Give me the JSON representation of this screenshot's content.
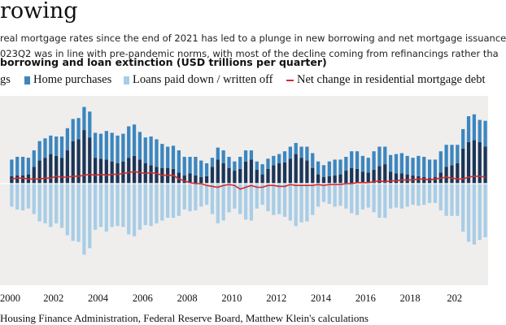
{
  "header": {
    "title": "rowing",
    "subtitle_line1": "real mortgage rates since the end of 2021 has led to a plunge in new borrowing and net mortgage issuance",
    "subtitle_line2": "023Q2 was in line with pre-pandemic norms, with most of the decline coming from refinancings rather tha"
  },
  "source": "Housing Finance Administration, Federal Reserve Board, Matthew Klein's calculations",
  "colors": {
    "refinancings": "#1c3557",
    "home_purchases": "#3c86bf",
    "loans_paid_down": "#a8cde6",
    "net_change": "#d62b2b",
    "plot_background": "#efeeed",
    "zero_line": "#ffffff"
  },
  "chart_data": {
    "type": "bar",
    "title": "borrowing and loan extinction (USD trillions per quarter)",
    "legend": {
      "refinancings": "gs",
      "home_purchases": "Home purchases",
      "loans_paid_down": "Loans paid down / written off",
      "net_change": "Net change in residential mortgage debt"
    },
    "legend_position": "top",
    "x_tick_labels": [
      "2000",
      "2002",
      "2004",
      "2006",
      "2008",
      "2010",
      "2012",
      "2014",
      "2016",
      "2018",
      "202"
    ],
    "x_ticks_year": [
      2000,
      2002,
      2004,
      2006,
      2008,
      2010,
      2012,
      2014,
      2016,
      2018,
      2020
    ],
    "xlim_year": [
      1999.6,
      2021.5
    ],
    "ylim": [
      -1.1,
      0.95
    ],
    "grid": false,
    "quarters": [
      "2000Q1",
      "2000Q2",
      "2000Q3",
      "2000Q4",
      "2001Q1",
      "2001Q2",
      "2001Q3",
      "2001Q4",
      "2002Q1",
      "2002Q2",
      "2002Q3",
      "2002Q4",
      "2003Q1",
      "2003Q2",
      "2003Q3",
      "2003Q4",
      "2004Q1",
      "2004Q2",
      "2004Q3",
      "2004Q4",
      "2005Q1",
      "2005Q2",
      "2005Q3",
      "2005Q4",
      "2006Q1",
      "2006Q2",
      "2006Q3",
      "2006Q4",
      "2007Q1",
      "2007Q2",
      "2007Q3",
      "2007Q4",
      "2008Q1",
      "2008Q2",
      "2008Q3",
      "2008Q4",
      "2009Q1",
      "2009Q2",
      "2009Q3",
      "2009Q4",
      "2010Q1",
      "2010Q2",
      "2010Q3",
      "2010Q4",
      "2011Q1",
      "2011Q2",
      "2011Q3",
      "2011Q4",
      "2012Q1",
      "2012Q2",
      "2012Q3",
      "2012Q4",
      "2013Q1",
      "2013Q2",
      "2013Q3",
      "2013Q4",
      "2014Q1",
      "2014Q2",
      "2014Q3",
      "2014Q4",
      "2015Q1",
      "2015Q2",
      "2015Q3",
      "2015Q4",
      "2016Q1",
      "2016Q2",
      "2016Q3",
      "2016Q4",
      "2017Q1",
      "2017Q2",
      "2017Q3",
      "2017Q4",
      "2018Q1",
      "2018Q2",
      "2018Q3",
      "2018Q4",
      "2019Q1",
      "2019Q2",
      "2019Q3",
      "2019Q4",
      "2020Q1",
      "2020Q2",
      "2020Q3",
      "2020Q4",
      "2021Q1",
      "2021Q2"
    ],
    "series": [
      {
        "name": "gs",
        "values": [
          0.08,
          0.09,
          0.09,
          0.1,
          0.18,
          0.25,
          0.28,
          0.32,
          0.3,
          0.28,
          0.36,
          0.46,
          0.48,
          0.58,
          0.5,
          0.28,
          0.27,
          0.26,
          0.24,
          0.22,
          0.24,
          0.28,
          0.3,
          0.26,
          0.22,
          0.2,
          0.18,
          0.17,
          0.17,
          0.16,
          0.12,
          0.09,
          0.11,
          0.09,
          0.07,
          0.08,
          0.18,
          0.26,
          0.22,
          0.17,
          0.14,
          0.16,
          0.24,
          0.26,
          0.15,
          0.1,
          0.16,
          0.2,
          0.22,
          0.23,
          0.27,
          0.32,
          0.28,
          0.25,
          0.17,
          0.1,
          0.07,
          0.08,
          0.09,
          0.1,
          0.14,
          0.17,
          0.16,
          0.13,
          0.12,
          0.15,
          0.19,
          0.21,
          0.13,
          0.11,
          0.11,
          0.1,
          0.09,
          0.08,
          0.07,
          0.06,
          0.07,
          0.12,
          0.18,
          0.2,
          0.22,
          0.38,
          0.45,
          0.47,
          0.45,
          0.4
        ]
      },
      {
        "name": "Home purchases",
        "values": [
          0.18,
          0.2,
          0.2,
          0.18,
          0.18,
          0.21,
          0.21,
          0.2,
          0.21,
          0.23,
          0.24,
          0.24,
          0.23,
          0.25,
          0.28,
          0.27,
          0.27,
          0.31,
          0.31,
          0.3,
          0.3,
          0.34,
          0.34,
          0.3,
          0.28,
          0.31,
          0.3,
          0.26,
          0.23,
          0.25,
          0.24,
          0.2,
          0.18,
          0.2,
          0.18,
          0.14,
          0.1,
          0.13,
          0.14,
          0.12,
          0.1,
          0.13,
          0.12,
          0.1,
          0.09,
          0.11,
          0.11,
          0.1,
          0.1,
          0.12,
          0.13,
          0.12,
          0.12,
          0.15,
          0.16,
          0.14,
          0.13,
          0.16,
          0.17,
          0.16,
          0.15,
          0.18,
          0.19,
          0.17,
          0.16,
          0.2,
          0.21,
          0.19,
          0.18,
          0.21,
          0.22,
          0.2,
          0.19,
          0.22,
          0.22,
          0.2,
          0.19,
          0.23,
          0.24,
          0.22,
          0.2,
          0.21,
          0.28,
          0.28,
          0.24,
          0.28
        ]
      },
      {
        "name": "Loans paid down / written off",
        "values": [
          -0.25,
          -0.28,
          -0.29,
          -0.27,
          -0.33,
          -0.41,
          -0.43,
          -0.47,
          -0.43,
          -0.48,
          -0.56,
          -0.62,
          -0.63,
          -0.77,
          -0.7,
          -0.5,
          -0.47,
          -0.52,
          -0.47,
          -0.46,
          -0.47,
          -0.55,
          -0.57,
          -0.5,
          -0.45,
          -0.46,
          -0.43,
          -0.4,
          -0.37,
          -0.37,
          -0.35,
          -0.28,
          -0.3,
          -0.29,
          -0.25,
          -0.23,
          -0.33,
          -0.43,
          -0.4,
          -0.31,
          -0.27,
          -0.33,
          -0.39,
          -0.4,
          -0.27,
          -0.23,
          -0.3,
          -0.34,
          -0.33,
          -0.36,
          -0.4,
          -0.46,
          -0.42,
          -0.41,
          -0.34,
          -0.25,
          -0.2,
          -0.22,
          -0.25,
          -0.24,
          -0.27,
          -0.32,
          -0.34,
          -0.28,
          -0.26,
          -0.31,
          -0.37,
          -0.37,
          -0.27,
          -0.26,
          -0.27,
          -0.25,
          -0.23,
          -0.24,
          -0.23,
          -0.21,
          -0.21,
          -0.29,
          -0.35,
          -0.35,
          -0.35,
          -0.52,
          -0.63,
          -0.66,
          -0.61,
          -0.58
        ]
      },
      {
        "name": "Net change in residential mortgage debt",
        "values": [
          0.05,
          0.06,
          0.06,
          0.05,
          0.05,
          0.05,
          0.06,
          0.06,
          0.08,
          0.07,
          0.07,
          0.08,
          0.08,
          0.09,
          0.1,
          0.09,
          0.1,
          0.09,
          0.1,
          0.1,
          0.11,
          0.12,
          0.13,
          0.12,
          0.11,
          0.12,
          0.11,
          0.09,
          0.09,
          0.09,
          0.05,
          0.03,
          0.01,
          0.0,
          0.0,
          -0.02,
          -0.03,
          -0.04,
          -0.02,
          -0.01,
          -0.02,
          -0.06,
          -0.04,
          -0.02,
          -0.04,
          -0.04,
          -0.02,
          -0.02,
          -0.03,
          -0.03,
          -0.01,
          -0.02,
          -0.02,
          -0.02,
          -0.02,
          -0.01,
          -0.02,
          -0.01,
          -0.01,
          -0.01,
          0.0,
          0.0,
          0.01,
          0.01,
          0.01,
          0.02,
          0.03,
          0.02,
          0.03,
          0.03,
          0.04,
          0.04,
          0.04,
          0.05,
          0.05,
          0.04,
          0.05,
          0.06,
          0.07,
          0.06,
          0.05,
          0.05,
          0.07,
          0.08,
          0.08,
          0.07
        ]
      }
    ]
  }
}
